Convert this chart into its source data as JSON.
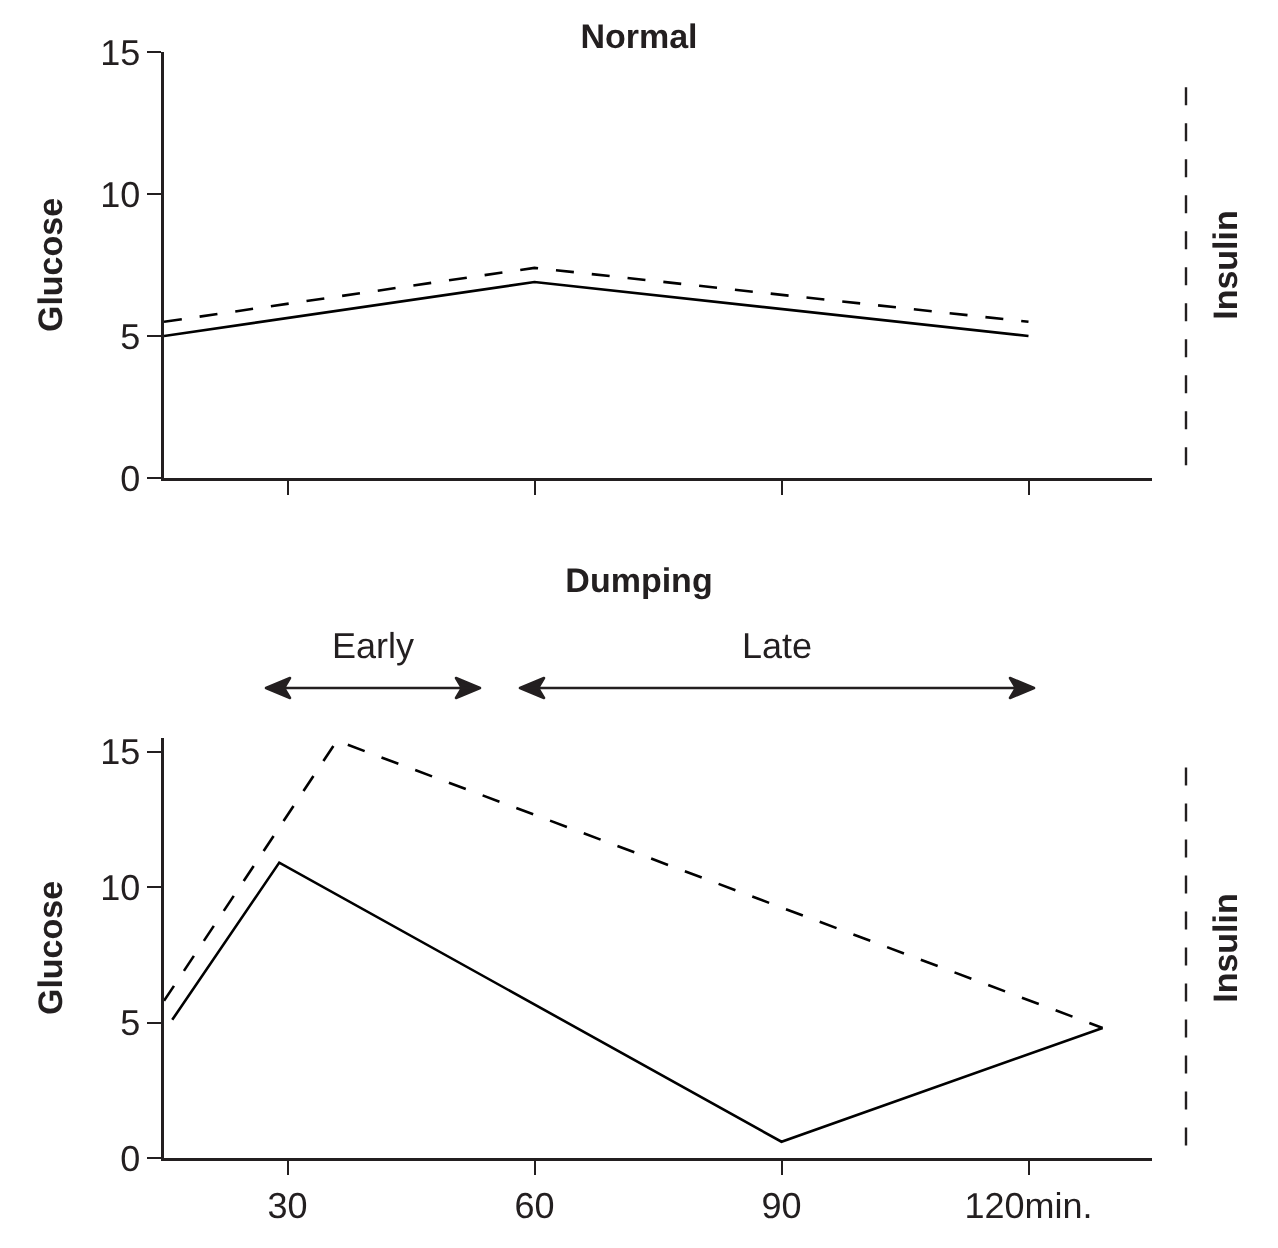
{
  "chart_data": [
    {
      "type": "line",
      "title": "Normal",
      "ylabel": "Glucose",
      "y2label": "Insulin",
      "xlim": [
        15,
        135
      ],
      "xticks": [
        {
          "value": 30,
          "label": null
        },
        {
          "value": 60,
          "label": null
        },
        {
          "value": 90,
          "label": null
        },
        {
          "value": 120,
          "label": null
        }
      ],
      "ylim": [
        0,
        15
      ],
      "yticks": [
        0,
        5,
        10,
        15
      ],
      "tick_labels": "y",
      "grid": false,
      "marker": "none",
      "series": [
        {
          "color": "#000000",
          "line_style": "solid",
          "x": [
            15,
            60,
            120
          ],
          "values": [
            5,
            6.9,
            5
          ]
        },
        {
          "color": "#000000",
          "line_style": "dashed",
          "x": [
            15,
            60,
            120
          ],
          "values": [
            5.5,
            7.4,
            5.5
          ]
        }
      ]
    },
    {
      "type": "line",
      "title": "Dumping",
      "ylabel": "Glucose",
      "y2label": "Insulin",
      "xlim": [
        15,
        135
      ],
      "xticks": [
        30,
        60,
        90,
        {
          "value": 120,
          "label": "120min."
        }
      ],
      "ylim": [
        0,
        15.5
      ],
      "yticks": [
        0,
        5,
        10,
        15
      ],
      "grid": false,
      "marker": "none",
      "annotations": [
        "Early",
        "Late"
      ],
      "series": [
        {
          "color": "#000000",
          "line_style": "solid",
          "x": [
            16,
            29,
            90,
            129
          ],
          "values": [
            5.1,
            10.9,
            0.6,
            4.8
          ]
        },
        {
          "color": "#000000",
          "line_style": "dashed",
          "x": [
            15,
            36,
            129
          ],
          "values": [
            5.8,
            15.4,
            4.8
          ]
        }
      ]
    }
  ]
}
